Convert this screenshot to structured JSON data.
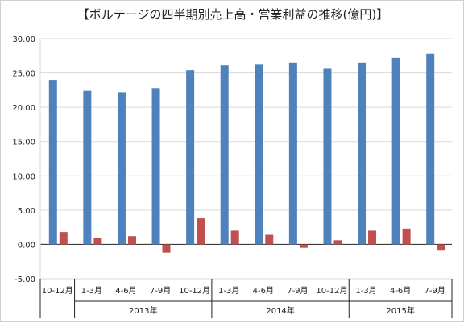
{
  "chart_data": {
    "type": "bar",
    "title": "【ボルテージの四半期別売上高・営業利益の推移(億円)】",
    "xlabel": "",
    "ylabel": "",
    "ylim": [
      -5,
      30
    ],
    "yticks": [
      "30.00",
      "25.00",
      "20.00",
      "15.00",
      "10.00",
      "5.00",
      "0.00",
      "-5.00"
    ],
    "ytick_values": [
      30,
      25,
      20,
      15,
      10,
      5,
      0,
      -5
    ],
    "grid": true,
    "legend": "none",
    "categories": [
      "10-12月",
      "1-3月",
      "4-6月",
      "7-9月",
      "10-12月",
      "1-3月",
      "4-6月",
      "7-9月",
      "10-12月",
      "1-3月",
      "4-6月",
      "7-9月"
    ],
    "year_groups": [
      {
        "label": "",
        "count": 1
      },
      {
        "label": "2013年",
        "count": 4
      },
      {
        "label": "2014年",
        "count": 4
      },
      {
        "label": "2015年",
        "count": 3
      }
    ],
    "series": [
      {
        "color": "#4f81bd",
        "values": [
          24.0,
          22.4,
          22.2,
          22.8,
          25.4,
          26.1,
          26.2,
          26.5,
          25.6,
          26.5,
          27.2,
          27.8
        ]
      },
      {
        "color": "#c0504d",
        "values": [
          1.8,
          0.9,
          1.2,
          -1.2,
          3.8,
          2.0,
          1.4,
          -0.5,
          0.6,
          2.0,
          2.3,
          -0.8
        ]
      }
    ]
  }
}
